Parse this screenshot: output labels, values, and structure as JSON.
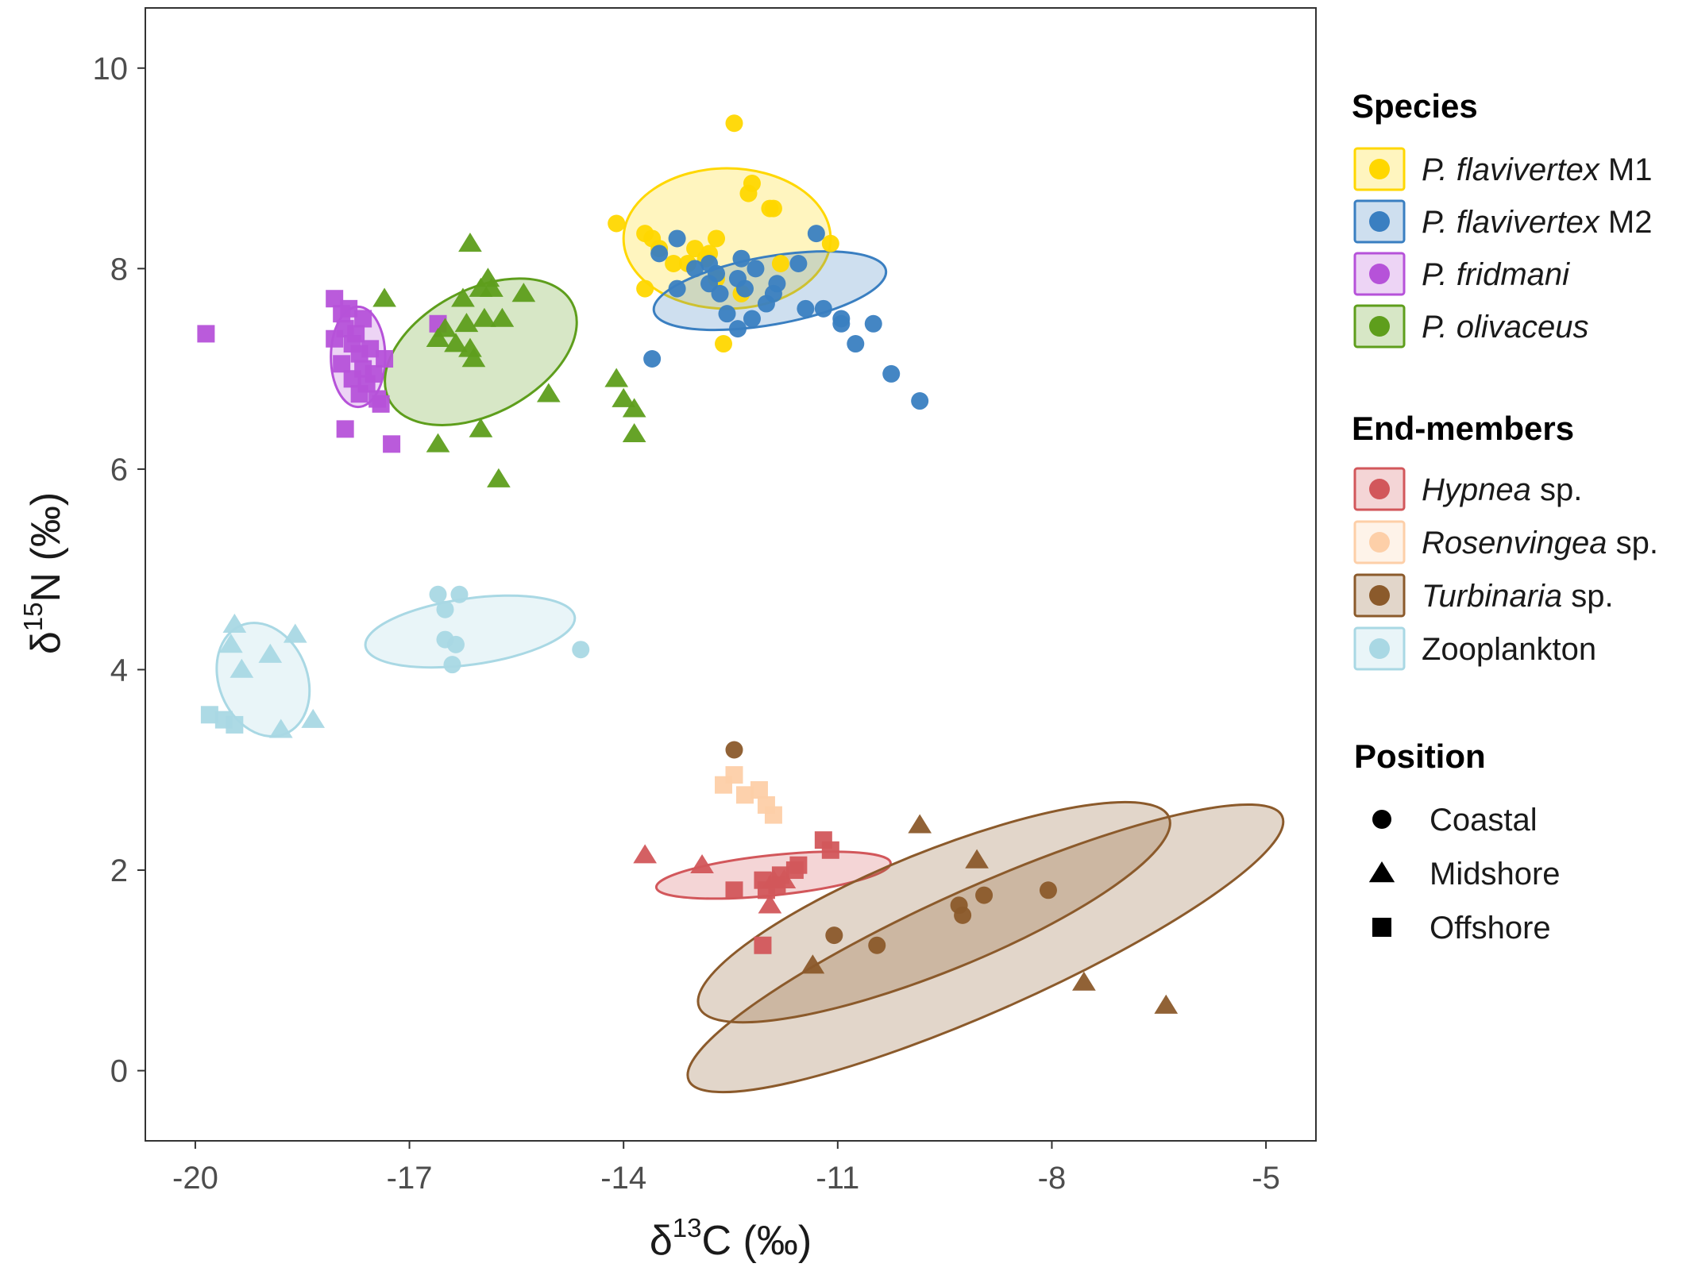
{
  "chart_data": {
    "type": "scatter",
    "xlabel": {
      "pre": "δ",
      "sup": "13",
      "post": "C (‰)"
    },
    "ylabel": {
      "pre": "δ",
      "sup": "15",
      "post": "N (‰)"
    },
    "xlim": [
      -20.7,
      -4.3
    ],
    "ylim": [
      -0.7,
      10.6
    ],
    "x_ticks": [
      -20,
      -17,
      -14,
      -11,
      -8,
      -5
    ],
    "y_ticks": [
      0,
      2,
      4,
      6,
      8,
      10
    ],
    "grid": false,
    "legend_position": "right",
    "legend": {
      "species_title": "Species",
      "species": [
        {
          "key": "pf1",
          "italic": "P. flavivertex",
          "plain": " M1"
        },
        {
          "key": "pf2",
          "italic": "P. flavivertex",
          "plain": " M2"
        },
        {
          "key": "pfr",
          "italic": "P. fridmani",
          "plain": ""
        },
        {
          "key": "pol",
          "italic": "P. olivaceus",
          "plain": ""
        }
      ],
      "endmembers_title": "End-members",
      "endmembers": [
        {
          "key": "hyp",
          "italic": "Hypnea",
          "plain": " sp."
        },
        {
          "key": "ros",
          "italic": "Rosenvingea",
          "plain": " sp."
        },
        {
          "key": "tur",
          "italic": "Turbinaria",
          "plain": " sp."
        },
        {
          "key": "zoo",
          "italic": "",
          "plain": "Zooplankton"
        }
      ],
      "position_title": "Position",
      "positions": [
        {
          "shape": "circle",
          "label": "Coastal"
        },
        {
          "shape": "triangle",
          "label": "Midshore"
        },
        {
          "shape": "square",
          "label": "Offshore"
        }
      ]
    },
    "colors": {
      "pf1": "#FFD700",
      "pf2": "#3A7FC1",
      "pfr": "#B652D9",
      "pol": "#5E9E1C",
      "hyp": "#D2575B",
      "ros": "#FDCFA8",
      "tur": "#8B5A2B",
      "zoo": "#A9D8E4"
    },
    "ellipses": [
      {
        "group": "pfr",
        "cx": -17.72,
        "cy": 7.12,
        "rx": 0.38,
        "ry": 0.5,
        "angle": 0
      },
      {
        "group": "pol",
        "cx": -16.0,
        "cy": 7.17,
        "rx": 1.45,
        "ry": 0.62,
        "angle": -28
      },
      {
        "group": "pf1",
        "cx": -12.55,
        "cy": 8.3,
        "rx": 1.45,
        "ry": 0.7,
        "angle": 0
      },
      {
        "group": "pf2",
        "cx": -11.95,
        "cy": 7.78,
        "rx": 1.65,
        "ry": 0.34,
        "angle": -10
      },
      {
        "group": "zoo",
        "cx": -19.05,
        "cy": 3.9,
        "rx": 0.82,
        "ry": 0.44,
        "angle": 68
      },
      {
        "group": "zoo",
        "cx": -16.15,
        "cy": 4.38,
        "rx": 1.48,
        "ry": 0.33,
        "angle": -8
      },
      {
        "group": "hyp",
        "cx": -11.9,
        "cy": 1.95,
        "rx": 1.65,
        "ry": 0.2,
        "angle": -6
      },
      {
        "group": "tur",
        "cx": -9.65,
        "cy": 1.58,
        "rx": 3.55,
        "ry": 0.6,
        "angle": -22
      },
      {
        "group": "tur",
        "cx": -8.93,
        "cy": 1.22,
        "rx": 4.55,
        "ry": 0.62,
        "angle": -24
      }
    ],
    "series": [
      {
        "group": "pf1",
        "shape": "circle",
        "points": [
          [
            -12.45,
            9.45
          ],
          [
            -12.2,
            8.85
          ],
          [
            -12.25,
            8.75
          ],
          [
            -11.95,
            8.6
          ],
          [
            -11.9,
            8.6
          ],
          [
            -14.1,
            8.45
          ],
          [
            -13.7,
            8.35
          ],
          [
            -13.5,
            8.2
          ],
          [
            -13.6,
            8.3
          ],
          [
            -12.7,
            8.3
          ],
          [
            -13.0,
            8.2
          ],
          [
            -12.8,
            8.15
          ],
          [
            -12.85,
            8.1
          ],
          [
            -11.8,
            8.05
          ],
          [
            -11.1,
            8.25
          ],
          [
            -13.3,
            8.05
          ],
          [
            -13.1,
            8.05
          ],
          [
            -12.7,
            7.9
          ],
          [
            -12.35,
            7.75
          ],
          [
            -13.7,
            7.8
          ],
          [
            -12.6,
            7.25
          ]
        ]
      },
      {
        "group": "pf2",
        "shape": "circle",
        "points": [
          [
            -11.3,
            8.35
          ],
          [
            -13.5,
            8.15
          ],
          [
            -13.0,
            8.0
          ],
          [
            -12.8,
            8.05
          ],
          [
            -12.35,
            8.1
          ],
          [
            -12.15,
            8.0
          ],
          [
            -11.55,
            8.05
          ],
          [
            -12.7,
            7.95
          ],
          [
            -12.4,
            7.9
          ],
          [
            -12.8,
            7.85
          ],
          [
            -13.25,
            7.8
          ],
          [
            -12.65,
            7.75
          ],
          [
            -12.3,
            7.8
          ],
          [
            -11.85,
            7.85
          ],
          [
            -11.9,
            7.75
          ],
          [
            -12.0,
            7.65
          ],
          [
            -11.45,
            7.6
          ],
          [
            -11.2,
            7.6
          ],
          [
            -12.55,
            7.55
          ],
          [
            -12.2,
            7.5
          ],
          [
            -10.95,
            7.5
          ],
          [
            -10.95,
            7.45
          ],
          [
            -10.5,
            7.45
          ],
          [
            -12.4,
            7.4
          ],
          [
            -10.75,
            7.25
          ],
          [
            -13.6,
            7.1
          ],
          [
            -10.25,
            6.95
          ],
          [
            -9.85,
            6.68
          ],
          [
            -13.25,
            8.3
          ]
        ]
      },
      {
        "group": "pfr",
        "shape": "square",
        "points": [
          [
            -18.05,
            7.7
          ],
          [
            -17.85,
            7.6
          ],
          [
            -17.95,
            7.55
          ],
          [
            -17.65,
            7.5
          ],
          [
            -17.9,
            7.4
          ],
          [
            -17.75,
            7.35
          ],
          [
            -18.05,
            7.3
          ],
          [
            -17.8,
            7.25
          ],
          [
            -17.55,
            7.2
          ],
          [
            -17.7,
            7.15
          ],
          [
            -17.35,
            7.1
          ],
          [
            -17.95,
            7.05
          ],
          [
            -17.65,
            7.0
          ],
          [
            -17.5,
            6.95
          ],
          [
            -17.8,
            6.9
          ],
          [
            -17.6,
            6.85
          ],
          [
            -17.7,
            6.75
          ],
          [
            -17.45,
            6.7
          ],
          [
            -17.4,
            6.65
          ],
          [
            -17.9,
            6.4
          ],
          [
            -17.25,
            6.25
          ],
          [
            -19.85,
            7.35
          ],
          [
            -16.6,
            7.45
          ]
        ]
      },
      {
        "group": "pol",
        "shape": "triangle",
        "points": [
          [
            -16.15,
            8.25
          ],
          [
            -15.9,
            7.9
          ],
          [
            -15.85,
            7.8
          ],
          [
            -16.0,
            7.8
          ],
          [
            -15.4,
            7.75
          ],
          [
            -16.25,
            7.7
          ],
          [
            -17.35,
            7.7
          ],
          [
            -15.7,
            7.5
          ],
          [
            -15.95,
            7.5
          ],
          [
            -16.2,
            7.45
          ],
          [
            -16.5,
            7.4
          ],
          [
            -16.6,
            7.3
          ],
          [
            -16.35,
            7.25
          ],
          [
            -16.15,
            7.2
          ],
          [
            -16.1,
            7.1
          ],
          [
            -15.05,
            6.75
          ],
          [
            -14.1,
            6.9
          ],
          [
            -14.0,
            6.7
          ],
          [
            -13.85,
            6.6
          ],
          [
            -16.0,
            6.4
          ],
          [
            -13.85,
            6.35
          ],
          [
            -16.6,
            6.25
          ],
          [
            -15.75,
            5.9
          ]
        ]
      },
      {
        "group": "zoo",
        "shape": "triangle",
        "points": [
          [
            -19.45,
            4.45
          ],
          [
            -18.6,
            4.35
          ],
          [
            -19.5,
            4.25
          ],
          [
            -18.95,
            4.15
          ],
          [
            -19.35,
            4.0
          ],
          [
            -18.35,
            3.5
          ],
          [
            -18.8,
            3.4
          ]
        ]
      },
      {
        "group": "zoo",
        "shape": "square",
        "points": [
          [
            -19.8,
            3.55
          ],
          [
            -19.6,
            3.5
          ],
          [
            -19.45,
            3.45
          ]
        ]
      },
      {
        "group": "zoo",
        "shape": "circle",
        "points": [
          [
            -16.6,
            4.75
          ],
          [
            -16.3,
            4.75
          ],
          [
            -16.5,
            4.6
          ],
          [
            -16.5,
            4.3
          ],
          [
            -16.35,
            4.25
          ],
          [
            -16.4,
            4.05
          ],
          [
            -14.6,
            4.2
          ]
        ]
      },
      {
        "group": "ros",
        "shape": "square",
        "points": [
          [
            -12.45,
            2.95
          ],
          [
            -12.6,
            2.85
          ],
          [
            -12.1,
            2.8
          ],
          [
            -12.3,
            2.75
          ],
          [
            -12.0,
            2.65
          ],
          [
            -11.9,
            2.55
          ]
        ]
      },
      {
        "group": "hyp",
        "shape": "square",
        "points": [
          [
            -11.2,
            2.3
          ],
          [
            -11.1,
            2.2
          ],
          [
            -11.55,
            2.05
          ],
          [
            -11.6,
            2.0
          ],
          [
            -11.8,
            1.95
          ],
          [
            -12.05,
            1.9
          ],
          [
            -11.85,
            1.85
          ],
          [
            -12.0,
            1.8
          ],
          [
            -12.45,
            1.8
          ],
          [
            -12.05,
            1.25
          ]
        ]
      },
      {
        "group": "hyp",
        "shape": "triangle",
        "points": [
          [
            -13.7,
            2.15
          ],
          [
            -12.9,
            2.05
          ],
          [
            -11.9,
            1.9
          ],
          [
            -11.75,
            1.9
          ],
          [
            -11.95,
            1.65
          ]
        ]
      },
      {
        "group": "tur",
        "shape": "circle",
        "points": [
          [
            -12.45,
            3.2
          ],
          [
            -8.05,
            1.8
          ],
          [
            -8.95,
            1.75
          ],
          [
            -9.3,
            1.65
          ],
          [
            -9.25,
            1.55
          ],
          [
            -11.05,
            1.35
          ],
          [
            -10.45,
            1.25
          ]
        ]
      },
      {
        "group": "tur",
        "shape": "triangle",
        "points": [
          [
            -9.85,
            2.45
          ],
          [
            -9.05,
            2.1
          ],
          [
            -11.35,
            1.05
          ],
          [
            -7.55,
            0.88
          ],
          [
            -6.4,
            0.65
          ]
        ]
      }
    ]
  }
}
